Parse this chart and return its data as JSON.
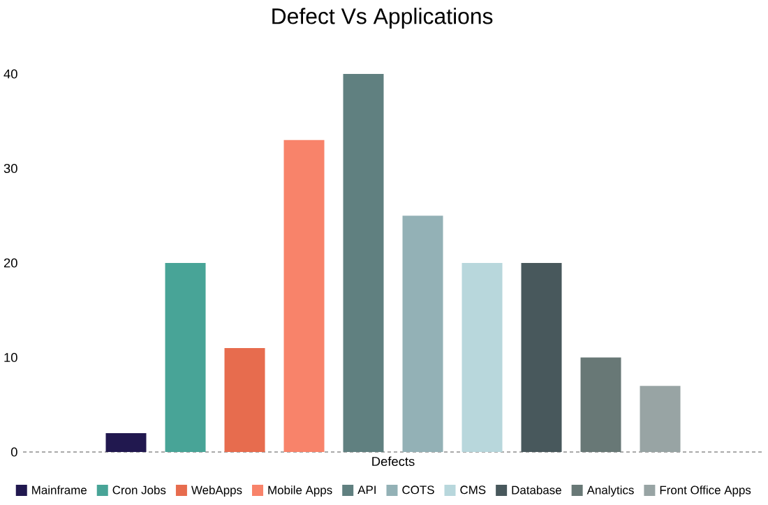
{
  "chart_data": {
    "type": "bar",
    "title": "Defect Vs Applications",
    "categories": [
      "Defects"
    ],
    "series": [
      {
        "name": "Mainframe",
        "color": "#21184f",
        "values": [
          2
        ]
      },
      {
        "name": "Cron Jobs",
        "color": "#48a497",
        "values": [
          20
        ]
      },
      {
        "name": "WebApps",
        "color": "#e76c4e",
        "values": [
          11
        ]
      },
      {
        "name": "Mobile Apps",
        "color": "#f8836a",
        "values": [
          33
        ]
      },
      {
        "name": "API",
        "color": "#608080",
        "values": [
          40
        ]
      },
      {
        "name": "COTS",
        "color": "#93b1b6",
        "values": [
          25
        ]
      },
      {
        "name": "CMS",
        "color": "#b8d7dc",
        "values": [
          20
        ]
      },
      {
        "name": "Database",
        "color": "#48585c",
        "values": [
          20
        ]
      },
      {
        "name": "Analytics",
        "color": "#687876",
        "values": [
          10
        ]
      },
      {
        "name": "Front Office Apps",
        "color": "#98a4a4",
        "values": [
          7
        ]
      }
    ],
    "ylim": [
      0,
      40
    ],
    "yticks": [
      0,
      10,
      20,
      30,
      40
    ],
    "legend": "bottom"
  }
}
